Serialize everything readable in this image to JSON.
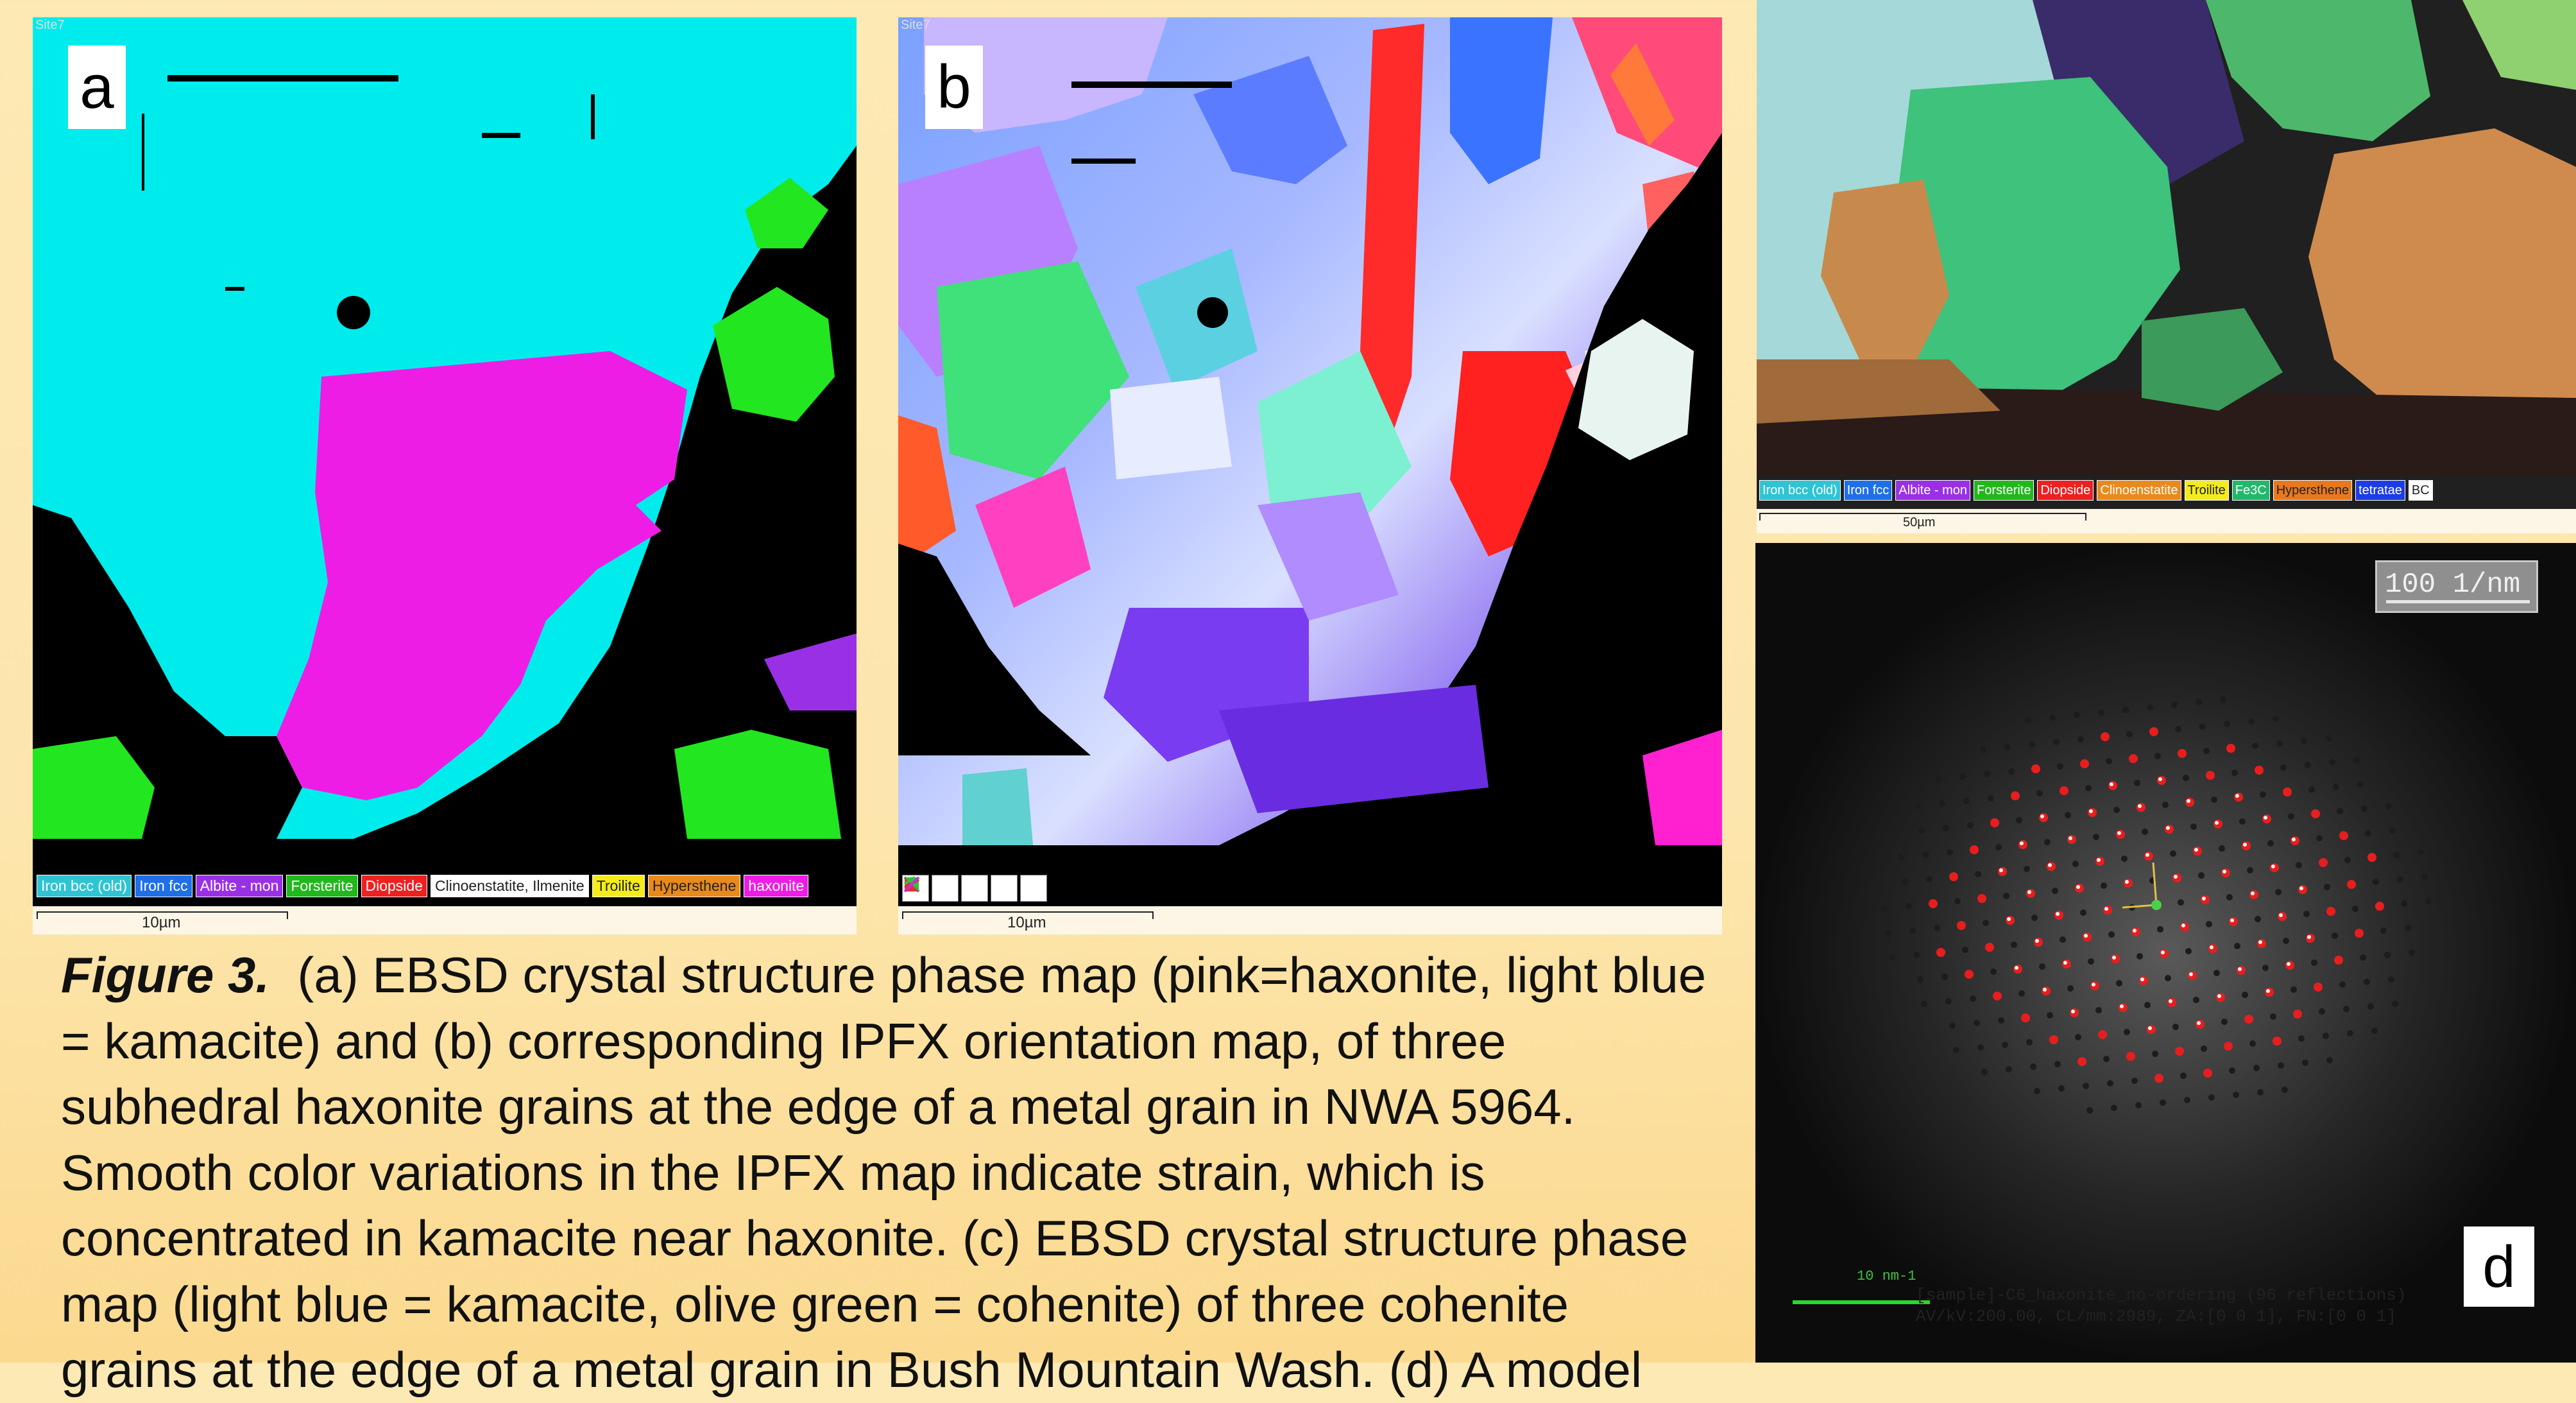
{
  "panels": {
    "a": {
      "letter": "a",
      "site_label": "Site7",
      "legend": [
        {
          "label": "Iron bcc (old)",
          "color": "#2ec4d4",
          "text_color": "#ffffff"
        },
        {
          "label": "Iron fcc",
          "color": "#1f6fe8",
          "text_color": "#ffffff"
        },
        {
          "label": "Albite - mon",
          "color": "#9a30e6",
          "text_color": "#ffffff"
        },
        {
          "label": "Forsterite",
          "color": "#21b81c",
          "text_color": "#ffffff"
        },
        {
          "label": "Diopside",
          "color": "#ee2020",
          "text_color": "#ffffff"
        },
        {
          "label": "Clinoenstatite, Ilmenite",
          "color": "#ffffff",
          "text_color": "#222222"
        },
        {
          "label": "Troilite",
          "color": "#f4ec1a",
          "text_color": "#222222"
        },
        {
          "label": "Hypersthene",
          "color": "#e98a1c",
          "text_color": "#222222"
        },
        {
          "label": "haxonite",
          "color": "#ee1de6",
          "text_color": "#ffffff"
        }
      ],
      "scale_label": "10µm"
    },
    "b": {
      "letter": "b",
      "site_label": "Site7",
      "icons": [
        "ipf-key-icon-1",
        "ipf-key-icon-2",
        "ipf-key-icon-3",
        "ipf-key-icon-4",
        "ipf-key-icon-5"
      ],
      "scale_label": "10µm"
    },
    "c": {
      "legend": [
        {
          "label": "Iron bcc (old)",
          "color": "#2ec4d4",
          "text_color": "#ffffff"
        },
        {
          "label": "Iron fcc",
          "color": "#1f6fe8",
          "text_color": "#ffffff"
        },
        {
          "label": "Albite - mon",
          "color": "#9a30e6",
          "text_color": "#ffffff"
        },
        {
          "label": "Forsterite",
          "color": "#21b81c",
          "text_color": "#ffffff"
        },
        {
          "label": "Diopside",
          "color": "#ee2020",
          "text_color": "#ffffff"
        },
        {
          "label": "Clinoenstatite",
          "color": "#e98a1c",
          "text_color": "#ffffff"
        },
        {
          "label": "Troilite",
          "color": "#f4ec1a",
          "text_color": "#222222"
        },
        {
          "label": "Fe3C",
          "color": "#22b86a",
          "text_color": "#ffffff"
        },
        {
          "label": "Hypersthene",
          "color": "#e9781c",
          "text_color": "#222222"
        },
        {
          "label": "tetratae",
          "color": "#1c3ce8",
          "text_color": "#ffffff"
        },
        {
          "label": "BC",
          "color": "#ffffff",
          "text_color": "#222222"
        }
      ],
      "scale_label": "50µm"
    },
    "d": {
      "letter": "d",
      "scale_bar_label": "100 1/nm",
      "small_scale_label": "10 nm-1",
      "info_line_1": "[sample]-C6_haxonite_no-ordering   (96 reflections)",
      "info_line_2": "AV/kV:200.00, CL/mm:2989, ZA:[0 0 1], FN:[0 0 1]"
    }
  },
  "caption": {
    "figure_label": "Figure 3.",
    "lines": [
      "(a) EBSD crystal structure phase map (pink=haxonite, light blue",
      "= kamacite) and (b) corresponding IPFX orientation map, of three",
      "subhedral haxonite grains at the edge of a metal grain in NWA 5964.",
      "Smooth color variations in the IPFX map indicate strain, which is",
      "concentrated in kamacite near haxonite. (c) EBSD crystal structure phase",
      "map (light blue = kamacite, olive green = cohenite) of three cohenite",
      "grains at the edge of a metal grain in Bush Mountain Wash. (d) A model"
    ]
  },
  "colors": {
    "kamacite": "#00ecec",
    "haxonite": "#ee1de6",
    "forsterite": "#22e620",
    "background": "#fde9b4"
  }
}
